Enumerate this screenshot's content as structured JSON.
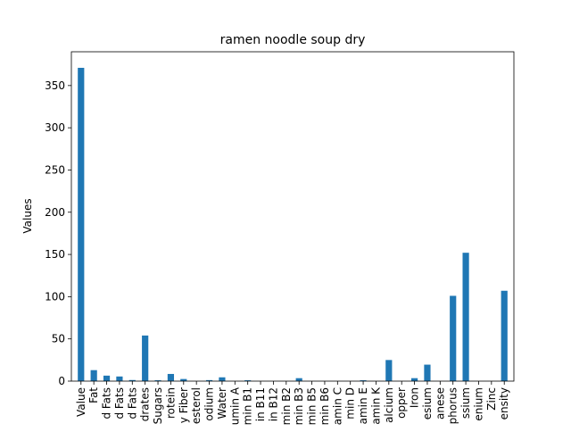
{
  "chart_data": {
    "type": "bar",
    "title": "ramen noodle soup dry",
    "xlabel": "",
    "ylabel": "Values",
    "ylim": [
      0,
      390
    ],
    "yticks": [
      0,
      50,
      100,
      150,
      200,
      250,
      300,
      350
    ],
    "grid": false,
    "bar_color": "#1f77b4",
    "categories": [
      "Value",
      "Fat",
      "d Fats",
      "d Fats",
      "d Fats",
      "drates",
      "Sugars",
      "rotein",
      "y Fiber",
      "esterol",
      "odium",
      "Water",
      "umin A",
      "min B1",
      "in B11",
      "in B12",
      "min B2",
      "min B3",
      "min B5",
      "min B6",
      "amin C",
      "min D",
      "amin E",
      "amin K",
      "alcium",
      "opper",
      "Iron",
      "esium",
      "anese",
      "phorus",
      "ssium",
      "enium",
      "Zinc",
      "ensity"
    ],
    "values": [
      371,
      13,
      6.5,
      5.5,
      1.3,
      54,
      1.0,
      8.5,
      2.5,
      0,
      1.2,
      4.5,
      0,
      1.0,
      0,
      0,
      0,
      3.5,
      0,
      0,
      0,
      0,
      1.0,
      0,
      25,
      0,
      3.5,
      19.5,
      0,
      101,
      152,
      0,
      0,
      107
    ]
  }
}
